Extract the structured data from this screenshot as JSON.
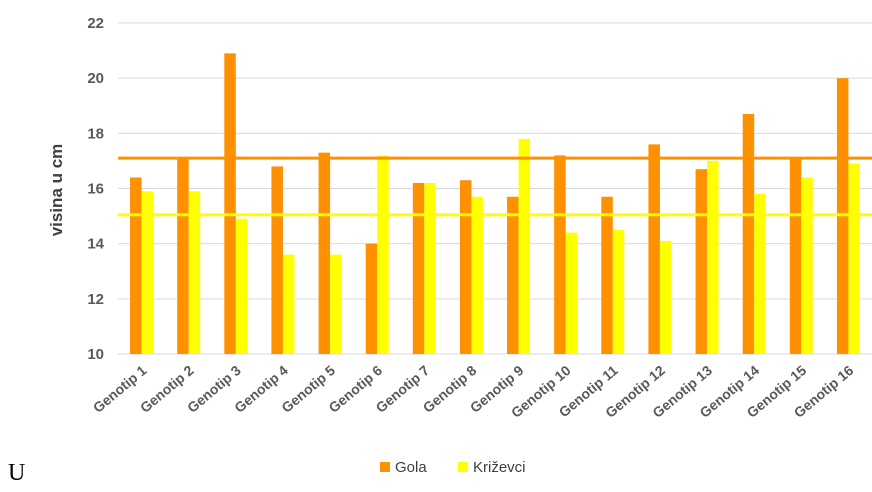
{
  "chart_data": {
    "type": "bar",
    "ylabel": "visina u cm",
    "xlabel": "",
    "ylim": [
      10,
      22
    ],
    "yticks": [
      10,
      12,
      14,
      16,
      18,
      20,
      22
    ],
    "grid": true,
    "legend_placement": "bottom",
    "categories": [
      "Genotip 1",
      "Genotip 2",
      "Genotip 3",
      "Genotip 4",
      "Genotip 5",
      "Genotip 6",
      "Genotip 7",
      "Genotip 8",
      "Genotip 9",
      "Genotip 10",
      "Genotip 11",
      "Genotip 12",
      "Genotip 13",
      "Genotip 14",
      "Genotip 15",
      "Genotip 16"
    ],
    "series": [
      {
        "name": "Gola",
        "color": "#ff9000",
        "values": [
          16.4,
          17.1,
          20.9,
          16.8,
          17.3,
          14.0,
          16.2,
          16.3,
          15.7,
          17.2,
          15.7,
          17.6,
          16.7,
          18.7,
          17.1,
          20.0
        ]
      },
      {
        "name": "Križevci",
        "color": "#ffff00",
        "values": [
          15.9,
          15.9,
          14.9,
          13.6,
          13.6,
          17.2,
          16.2,
          15.7,
          17.8,
          14.4,
          14.5,
          14.1,
          17.0,
          15.8,
          16.4,
          16.9
        ]
      }
    ],
    "reference_lines": [
      {
        "series": "Gola",
        "value": 17.1,
        "color": "#ff9000"
      },
      {
        "series": "Križevci",
        "value": 15.05,
        "color": "#ffff00"
      }
    ]
  },
  "stray_text": "U"
}
